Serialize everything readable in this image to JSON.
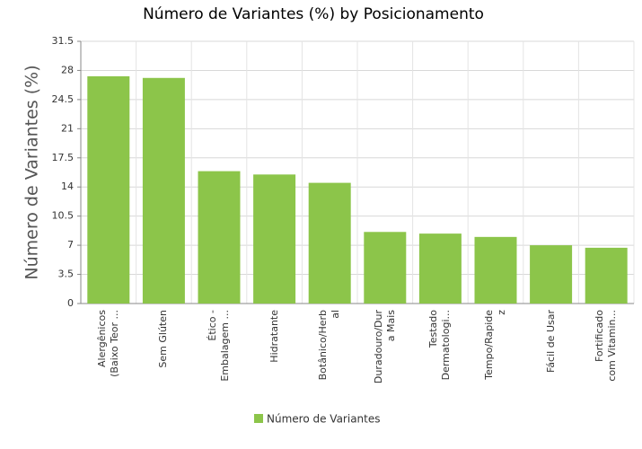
{
  "chart_data": {
    "type": "bar",
    "title": "Número de Variantes (%) by Posicionamento",
    "y_label": "Número de Variantes (%)",
    "categories": [
      "Alergênicos\n(Baixo Teor ...",
      "Sem Glúten",
      "Ético -\nEmbalagem ...",
      "Hidratante",
      "Botânico/Herb\nal",
      "Duradouro/Dur\na Mais",
      "Testado\nDermatologi...",
      "Tempo/Rapide\nz",
      "Fácil de Usar",
      "Fortificado\ncom Vitamin..."
    ],
    "series": [
      {
        "name": "Número de Variantes",
        "color": "#8cc54a",
        "values": [
          27.3,
          27.1,
          15.9,
          15.5,
          14.5,
          8.6,
          8.4,
          8.0,
          7.0,
          6.7
        ]
      }
    ],
    "ylim": [
      0,
      31.5
    ],
    "yticks": [
      0,
      3.5,
      7,
      10.5,
      14,
      17.5,
      21,
      24.5,
      28,
      31.5
    ],
    "grid": true
  }
}
